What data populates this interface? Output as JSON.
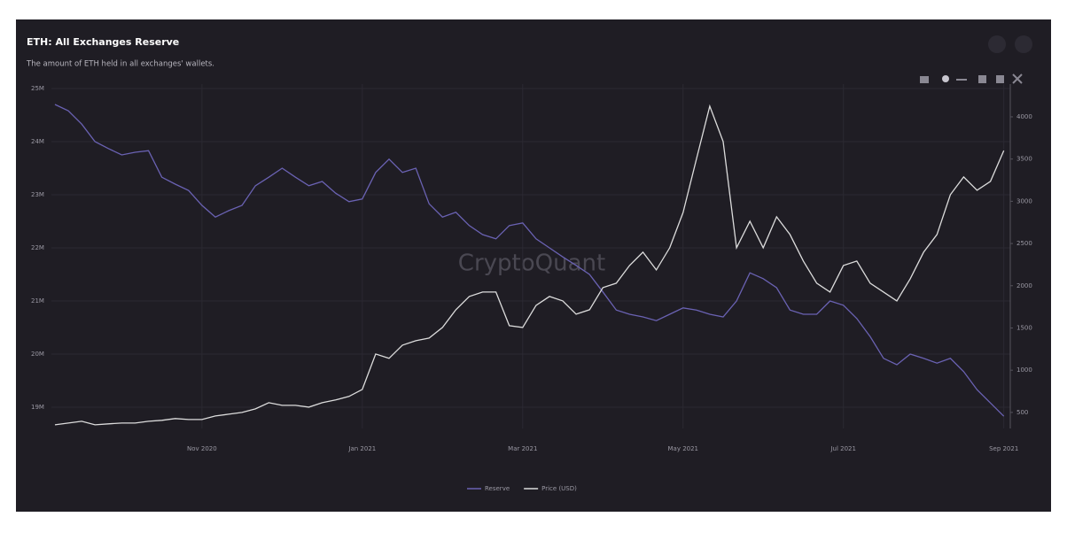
{
  "chart_data": {
    "type": "line",
    "title": "ETH: All Exchanges Reserve",
    "subtitle": "The amount of ETH held in all exchanges' wallets.",
    "watermark": "CryptoQuant",
    "categories": [
      null,
      null,
      null,
      null,
      null,
      null,
      null,
      null,
      null,
      null,
      null,
      "Nov 2020",
      null,
      null,
      null,
      null,
      null,
      null,
      null,
      null,
      null,
      null,
      null,
      "Jan 2021",
      null,
      null,
      null,
      null,
      null,
      null,
      null,
      null,
      null,
      null,
      null,
      "Mar 2021",
      null,
      null,
      null,
      null,
      null,
      null,
      null,
      null,
      null,
      null,
      null,
      "May 2021",
      null,
      null,
      null,
      null,
      null,
      null,
      null,
      null,
      null,
      null,
      null,
      "Jul 2021",
      null,
      null,
      null,
      null,
      null,
      null,
      null,
      null,
      null,
      null,
      null,
      "Sep 2021"
    ],
    "series": [
      {
        "name": "Reserve",
        "color": "#6a62b3",
        "axis": "y",
        "values": [
          24700000,
          24580000,
          24330000,
          24000000,
          23870000,
          23750000,
          23800000,
          23830000,
          23330000,
          23200000,
          23080000,
          22800000,
          22580000,
          22700000,
          22800000,
          23170000,
          23330000,
          23500000,
          23330000,
          23170000,
          23250000,
          23030000,
          22870000,
          22920000,
          23420000,
          23670000,
          23420000,
          23500000,
          22830000,
          22580000,
          22670000,
          22420000,
          22250000,
          22170000,
          22420000,
          22470000,
          22170000,
          22000000,
          21830000,
          21670000,
          21500000,
          21170000,
          20830000,
          20750000,
          20700000,
          20630000,
          20750000,
          20870000,
          20830000,
          20750000,
          20700000,
          21000000,
          21530000,
          21420000,
          21250000,
          20830000,
          20750000,
          20750000,
          21000000,
          20920000,
          20670000,
          20330000,
          19920000,
          19800000,
          20000000,
          19920000,
          19830000,
          19920000,
          19670000,
          19330000,
          19080000,
          18830000
        ]
      },
      {
        "name": "Price (USD)",
        "color": "#dcdcdc",
        "axis": "y2",
        "values": [
          353,
          374,
          395,
          353,
          364,
          374,
          374,
          395,
          406,
          427,
          416,
          416,
          458,
          479,
          500,
          542,
          615,
          584,
          584,
          563,
          615,
          647,
          689,
          772,
          1192,
          1140,
          1296,
          1349,
          1380,
          1506,
          1716,
          1873,
          1925,
          1925,
          1527,
          1506,
          1768,
          1873,
          1820,
          1663,
          1716,
          1978,
          2030,
          2240,
          2397,
          2187,
          2449,
          2868,
          3497,
          4126,
          3707,
          2449,
          2764,
          2449,
          2816,
          2607,
          2292,
          2030,
          1925,
          2240,
          2292,
          2030,
          1925,
          1820,
          2082,
          2397,
          2607,
          3078,
          3288,
          3131,
          3235,
          3600
        ]
      }
    ],
    "ylim": [
      18600000,
      25000000
    ],
    "yticks": [
      {
        "value": 19000000,
        "label": "19M"
      },
      {
        "value": 20000000,
        "label": "20M"
      },
      {
        "value": 21000000,
        "label": "21M"
      },
      {
        "value": 22000000,
        "label": "22M"
      },
      {
        "value": 23000000,
        "label": "23M"
      },
      {
        "value": 24000000,
        "label": "24M"
      },
      {
        "value": 25000000,
        "label": "25M"
      }
    ],
    "y2lim": [
      310,
      4335
    ],
    "y2ticks": [
      500,
      1000,
      1500,
      2000,
      2500,
      3000,
      3500,
      4000
    ],
    "grid": true,
    "legend": "bottom"
  }
}
